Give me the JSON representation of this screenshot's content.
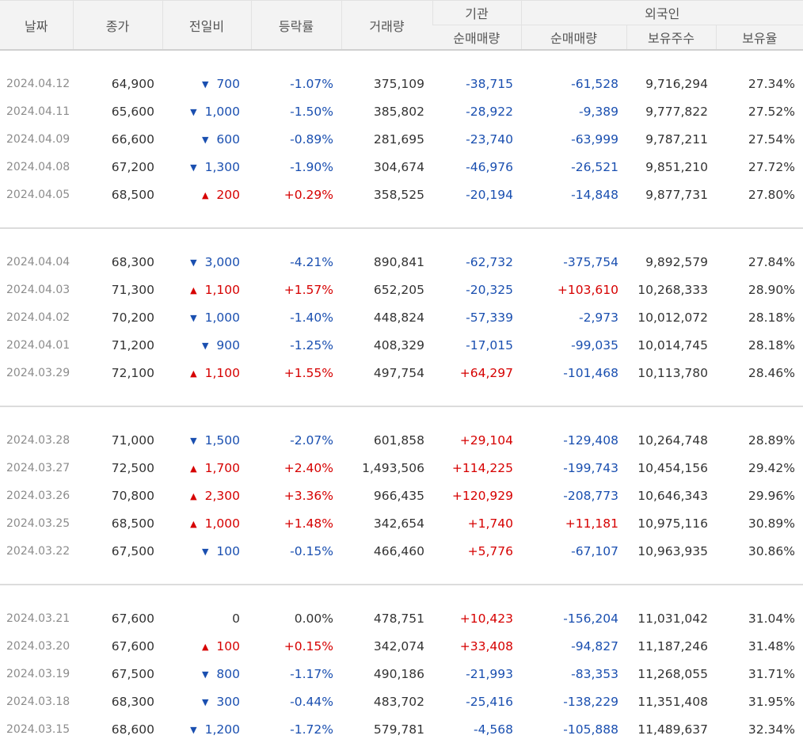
{
  "headers": {
    "date": "날짜",
    "close": "종가",
    "diff": "전일비",
    "rate": "등락률",
    "volume": "거래량",
    "institution": "기관",
    "inst_net": "순매매량",
    "foreign": "외국인",
    "foreign_net": "순매매량",
    "foreign_hold": "보유주수",
    "foreign_ratio": "보유율"
  },
  "colors": {
    "up": "#d60000",
    "down": "#1a4fb0"
  },
  "icons": {
    "up": "triangle-up-icon",
    "down": "triangle-down-icon"
  },
  "groups": [
    [
      {
        "date": "2024.04.12",
        "close": "64,900",
        "dir": "down",
        "diff": "700",
        "rate": "-1.07%",
        "volume": "375,109",
        "inst": "-38,715",
        "fnet": "-61,528",
        "fhold": "9,716,294",
        "fratio": "27.34%"
      },
      {
        "date": "2024.04.11",
        "close": "65,600",
        "dir": "down",
        "diff": "1,000",
        "rate": "-1.50%",
        "volume": "385,802",
        "inst": "-28,922",
        "fnet": "-9,389",
        "fhold": "9,777,822",
        "fratio": "27.52%"
      },
      {
        "date": "2024.04.09",
        "close": "66,600",
        "dir": "down",
        "diff": "600",
        "rate": "-0.89%",
        "volume": "281,695",
        "inst": "-23,740",
        "fnet": "-63,999",
        "fhold": "9,787,211",
        "fratio": "27.54%"
      },
      {
        "date": "2024.04.08",
        "close": "67,200",
        "dir": "down",
        "diff": "1,300",
        "rate": "-1.90%",
        "volume": "304,674",
        "inst": "-46,976",
        "fnet": "-26,521",
        "fhold": "9,851,210",
        "fratio": "27.72%"
      },
      {
        "date": "2024.04.05",
        "close": "68,500",
        "dir": "up",
        "diff": "200",
        "rate": "+0.29%",
        "volume": "358,525",
        "inst": "-20,194",
        "fnet": "-14,848",
        "fhold": "9,877,731",
        "fratio": "27.80%"
      }
    ],
    [
      {
        "date": "2024.04.04",
        "close": "68,300",
        "dir": "down",
        "diff": "3,000",
        "rate": "-4.21%",
        "volume": "890,841",
        "inst": "-62,732",
        "fnet": "-375,754",
        "fhold": "9,892,579",
        "fratio": "27.84%"
      },
      {
        "date": "2024.04.03",
        "close": "71,300",
        "dir": "up",
        "diff": "1,100",
        "rate": "+1.57%",
        "volume": "652,205",
        "inst": "-20,325",
        "fnet": "+103,610",
        "fhold": "10,268,333",
        "fratio": "28.90%"
      },
      {
        "date": "2024.04.02",
        "close": "70,200",
        "dir": "down",
        "diff": "1,000",
        "rate": "-1.40%",
        "volume": "448,824",
        "inst": "-57,339",
        "fnet": "-2,973",
        "fhold": "10,012,072",
        "fratio": "28.18%"
      },
      {
        "date": "2024.04.01",
        "close": "71,200",
        "dir": "down",
        "diff": "900",
        "rate": "-1.25%",
        "volume": "408,329",
        "inst": "-17,015",
        "fnet": "-99,035",
        "fhold": "10,014,745",
        "fratio": "28.18%"
      },
      {
        "date": "2024.03.29",
        "close": "72,100",
        "dir": "up",
        "diff": "1,100",
        "rate": "+1.55%",
        "volume": "497,754",
        "inst": "+64,297",
        "fnet": "-101,468",
        "fhold": "10,113,780",
        "fratio": "28.46%"
      }
    ],
    [
      {
        "date": "2024.03.28",
        "close": "71,000",
        "dir": "down",
        "diff": "1,500",
        "rate": "-2.07%",
        "volume": "601,858",
        "inst": "+29,104",
        "fnet": "-129,408",
        "fhold": "10,264,748",
        "fratio": "28.89%"
      },
      {
        "date": "2024.03.27",
        "close": "72,500",
        "dir": "up",
        "diff": "1,700",
        "rate": "+2.40%",
        "volume": "1,493,506",
        "inst": "+114,225",
        "fnet": "-199,743",
        "fhold": "10,454,156",
        "fratio": "29.42%"
      },
      {
        "date": "2024.03.26",
        "close": "70,800",
        "dir": "up",
        "diff": "2,300",
        "rate": "+3.36%",
        "volume": "966,435",
        "inst": "+120,929",
        "fnet": "-208,773",
        "fhold": "10,646,343",
        "fratio": "29.96%"
      },
      {
        "date": "2024.03.25",
        "close": "68,500",
        "dir": "up",
        "diff": "1,000",
        "rate": "+1.48%",
        "volume": "342,654",
        "inst": "+1,740",
        "fnet": "+11,181",
        "fhold": "10,975,116",
        "fratio": "30.89%"
      },
      {
        "date": "2024.03.22",
        "close": "67,500",
        "dir": "down",
        "diff": "100",
        "rate": "-0.15%",
        "volume": "466,460",
        "inst": "+5,776",
        "fnet": "-67,107",
        "fhold": "10,963,935",
        "fratio": "30.86%"
      }
    ],
    [
      {
        "date": "2024.03.21",
        "close": "67,600",
        "dir": "flat",
        "diff": "0",
        "rate": "0.00%",
        "volume": "478,751",
        "inst": "+10,423",
        "fnet": "-156,204",
        "fhold": "11,031,042",
        "fratio": "31.04%"
      },
      {
        "date": "2024.03.20",
        "close": "67,600",
        "dir": "up",
        "diff": "100",
        "rate": "+0.15%",
        "volume": "342,074",
        "inst": "+33,408",
        "fnet": "-94,827",
        "fhold": "11,187,246",
        "fratio": "31.48%"
      },
      {
        "date": "2024.03.19",
        "close": "67,500",
        "dir": "down",
        "diff": "800",
        "rate": "-1.17%",
        "volume": "490,186",
        "inst": "-21,993",
        "fnet": "-83,353",
        "fhold": "11,268,055",
        "fratio": "31.71%"
      },
      {
        "date": "2024.03.18",
        "close": "68,300",
        "dir": "down",
        "diff": "300",
        "rate": "-0.44%",
        "volume": "483,702",
        "inst": "-25,416",
        "fnet": "-138,229",
        "fhold": "11,351,408",
        "fratio": "31.95%"
      },
      {
        "date": "2024.03.15",
        "close": "68,600",
        "dir": "down",
        "diff": "1,200",
        "rate": "-1.72%",
        "volume": "579,781",
        "inst": "-4,568",
        "fnet": "-105,888",
        "fhold": "11,489,637",
        "fratio": "32.34%"
      }
    ]
  ]
}
